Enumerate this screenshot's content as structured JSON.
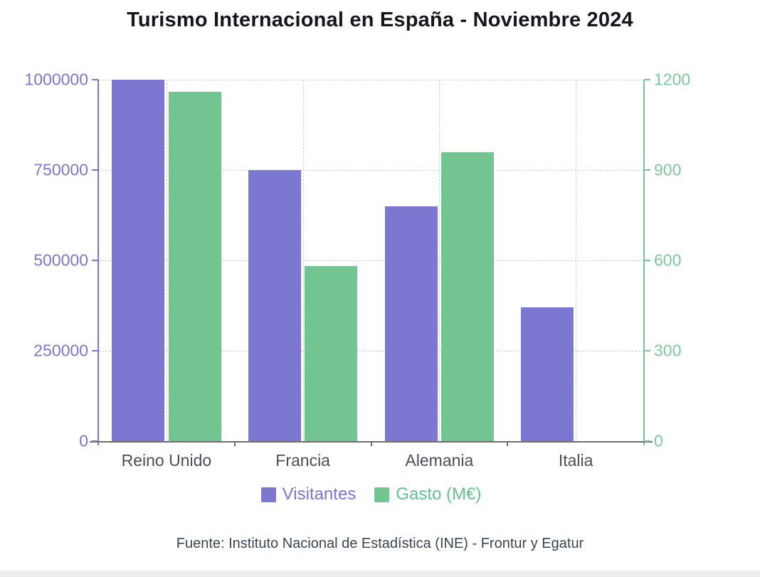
{
  "title": "Turismo Internacional en España - Noviembre 2024",
  "source": "Fuente: Instituto Nacional de Estadística (INE) - Frontur y Egatur",
  "chart_data": {
    "type": "bar",
    "title": "Turismo Internacional en España - Noviembre 2024",
    "categories": [
      "Reino Unido",
      "Francia",
      "Alemania",
      "Italia"
    ],
    "series": [
      {
        "name": "Visitantes",
        "axis": "left",
        "color": "#7c77d0",
        "values": [
          1000000,
          750000,
          650000,
          370000
        ]
      },
      {
        "name": "Gasto (M€)",
        "axis": "right",
        "color": "#72c591",
        "values": [
          1160,
          580,
          960,
          null
        ]
      }
    ],
    "left_axis": {
      "ticks": [
        "0",
        "250000",
        "500000",
        "750000",
        "1000000"
      ],
      "max": 1000000,
      "color": "#7b76cf",
      "label_color": "#7b76cf"
    },
    "right_axis": {
      "ticks": [
        "0",
        "300",
        "600",
        "900",
        "1200"
      ],
      "max": 1200,
      "color": "#74c694",
      "label_color": "#7cc79d"
    },
    "grid": true,
    "grid_color": "#d2d2d2",
    "legend_position": "bottom",
    "xlabel": "",
    "ylabel": ""
  },
  "legend": {
    "items": [
      {
        "label": "Visitantes",
        "color": "#7c77d0",
        "text_color": "#7b76cf"
      },
      {
        "label": "Gasto (M€)",
        "color": "#72c591",
        "text_color": "#63c18e"
      }
    ]
  },
  "category_label_color": "#4d4d57"
}
